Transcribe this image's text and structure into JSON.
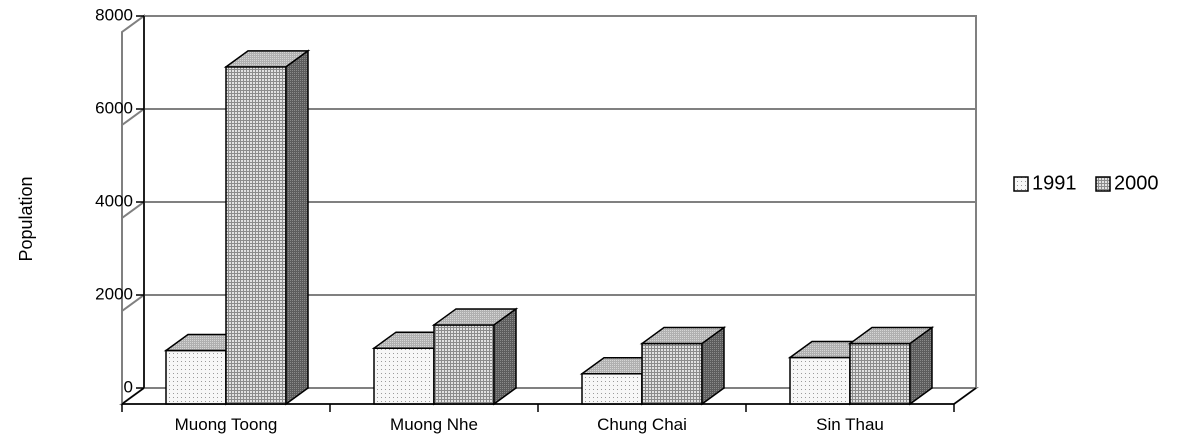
{
  "chart_data": {
    "type": "bar",
    "style": "3d-clustered-column",
    "categories": [
      "Muong Toong",
      "Muong Nhe",
      "Chung Chai",
      "Sin Thau"
    ],
    "series": [
      {
        "name": "1991",
        "values": [
          1150,
          1200,
          650,
          1000
        ],
        "pattern": "dots-light"
      },
      {
        "name": "2000",
        "values": [
          7250,
          1700,
          1300,
          1300
        ],
        "pattern": "grid-dense"
      }
    ],
    "title": "",
    "xlabel": "",
    "ylabel": "Population",
    "ylim": [
      0,
      8000
    ],
    "yticks": [
      0,
      2000,
      4000,
      6000,
      8000
    ],
    "grid": true,
    "legend": "right",
    "colors": {
      "grid": "#808080",
      "outline": "#000000",
      "front1991": "#f4f4f4",
      "front2000": "#d4d4d4",
      "side": "#6a6a6a",
      "top": "#bdbdbd"
    }
  }
}
